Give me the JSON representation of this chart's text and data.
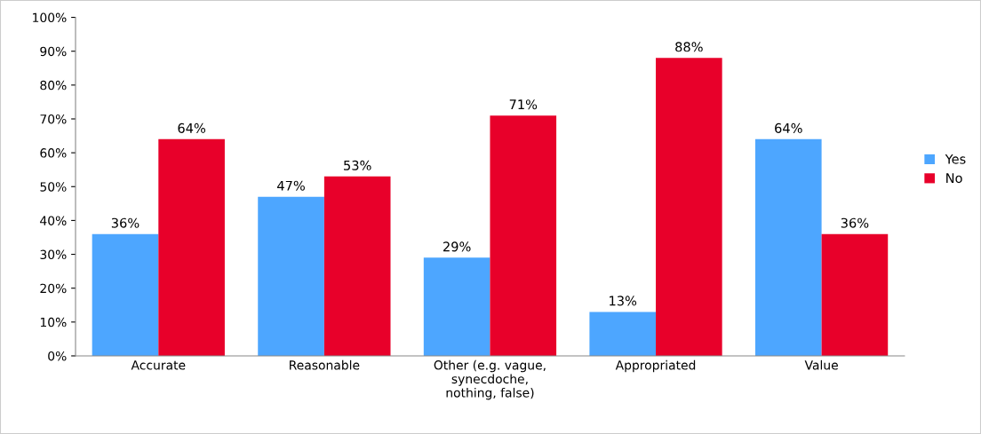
{
  "chart_data": {
    "type": "bar",
    "categories": [
      "Accurate",
      "Reasonable",
      "Other (e.g. vague,\nsynecdoche,\nnothing, false)",
      "Appropriated",
      "Value"
    ],
    "series": [
      {
        "name": "Yes",
        "color": "#4da6ff",
        "values": [
          36,
          47,
          29,
          13,
          64
        ],
        "value_labels": [
          "36%",
          "47%",
          "29%",
          "13%",
          "64%"
        ]
      },
      {
        "name": "No",
        "color": "#e8002a",
        "values": [
          64,
          53,
          71,
          88,
          36
        ],
        "value_labels": [
          "64%",
          "53%",
          "71%",
          "88%",
          "36%"
        ]
      }
    ],
    "ylim": [
      0,
      100
    ],
    "yticks": [
      {
        "value": 0,
        "label": "0%"
      },
      {
        "value": 10,
        "label": "10%"
      },
      {
        "value": 20,
        "label": "20%"
      },
      {
        "value": 30,
        "label": "30%"
      },
      {
        "value": 40,
        "label": "40%"
      },
      {
        "value": 50,
        "label": "50%"
      },
      {
        "value": 60,
        "label": "60%"
      },
      {
        "value": 70,
        "label": "70%"
      },
      {
        "value": 80,
        "label": "80%"
      },
      {
        "value": 90,
        "label": "90%"
      },
      {
        "value": 100,
        "label": "100%"
      }
    ],
    "legend": "right"
  }
}
